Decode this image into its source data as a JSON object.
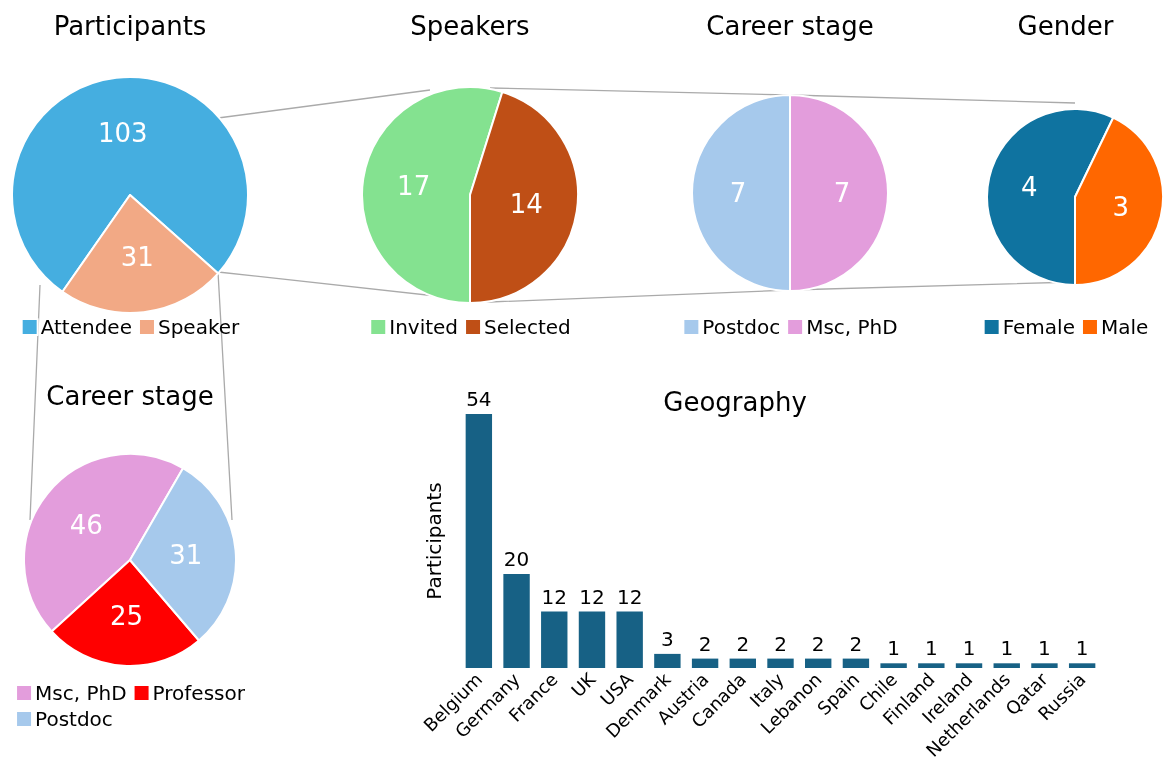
{
  "chart_data": [
    {
      "type": "pie",
      "title": "Participants",
      "categories": [
        "Attendee",
        "Speaker"
      ],
      "values": [
        103,
        31
      ],
      "colors": [
        "#45aee0",
        "#f2a985"
      ],
      "data_labels": true,
      "legend": "bottom"
    },
    {
      "type": "pie",
      "title": "Speakers",
      "categories": [
        "Invited",
        "Selected"
      ],
      "values": [
        17,
        14
      ],
      "colors": [
        "#84e290",
        "#bf4f16"
      ],
      "data_labels": true,
      "legend": "bottom"
    },
    {
      "type": "pie",
      "title": "Career stage",
      "categories": [
        "Postdoc",
        "Msc, PhD"
      ],
      "values": [
        7,
        7
      ],
      "colors": [
        "#a6c9ec",
        "#e39ddc"
      ],
      "data_labels": true,
      "legend": "bottom"
    },
    {
      "type": "pie",
      "title": "Gender",
      "categories": [
        "Female",
        "Male"
      ],
      "values": [
        4,
        3
      ],
      "colors": [
        "#0f73a0",
        "#ff6700"
      ],
      "data_labels": true,
      "legend": "bottom"
    },
    {
      "type": "pie",
      "title": "Career stage",
      "categories": [
        "Msc, PhD",
        "Professor",
        "Postdoc"
      ],
      "values": [
        46,
        25,
        31
      ],
      "colors": [
        "#e39ddc",
        "#ff0000",
        "#a6c9ec"
      ],
      "data_labels": true,
      "legend": "bottom"
    },
    {
      "type": "bar",
      "title": "Geography",
      "ylabel": "Participants",
      "categories": [
        "Belgium",
        "Germany",
        "France",
        "UK",
        "USA",
        "Denmark",
        "Austria",
        "Canada",
        "Italy",
        "Lebanon",
        "Spain",
        "Chile",
        "Finland",
        "Ireland",
        "Netherlands",
        "Qatar",
        "Russia"
      ],
      "values": [
        54,
        20,
        12,
        12,
        12,
        3,
        2,
        2,
        2,
        2,
        2,
        1,
        1,
        1,
        1,
        1,
        1
      ],
      "color": "#176185",
      "ylim": [
        0,
        54
      ],
      "data_labels": true,
      "tick_labels": "x"
    }
  ]
}
